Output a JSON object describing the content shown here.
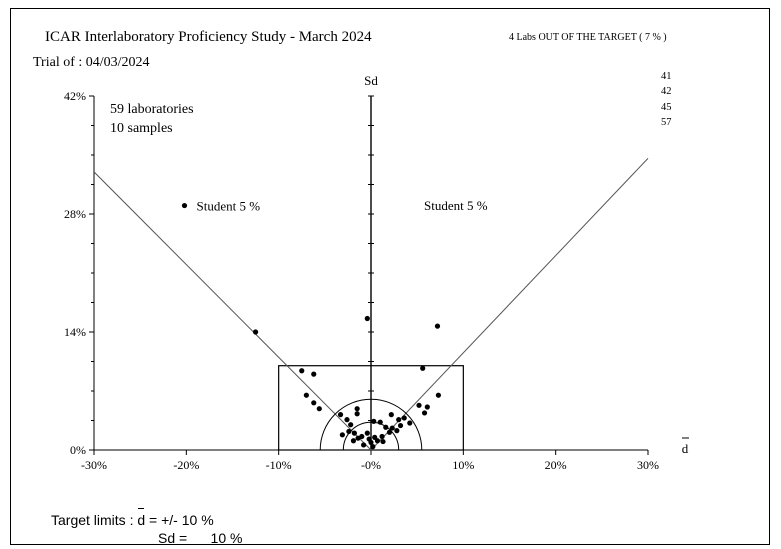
{
  "header": {
    "title": "ICAR Interlaboratory Proficiency Study - March  2024",
    "trial": "Trial of : 04/03/2024",
    "out_of_target": "4 Labs OUT OF THE TARGET ( 7 % )",
    "out_labs": [
      "41",
      "42",
      "45",
      "57"
    ]
  },
  "annotations": {
    "labs": "59 laboratories",
    "samples": "10 samples",
    "student_left": "Student 5 %",
    "student_right": "Student 5 %"
  },
  "footer": {
    "target_prefix": "Target limits : ",
    "d_symbol": "d",
    "target_d_value": " = +/- 10 %",
    "target_sd_text": "Sd =      10 %"
  },
  "chart_data": {
    "type": "scatter",
    "xlabel": "d",
    "ylabel": "Sd",
    "xlim": [
      -30,
      30
    ],
    "ylim": [
      0,
      42
    ],
    "x_ticks": [
      -30,
      -20,
      -10,
      0,
      10,
      20,
      30
    ],
    "x_tick_labels": [
      "-30%",
      "-20%",
      "-10%",
      "-0%",
      "10%",
      "20%",
      "30%"
    ],
    "y_ticks": [
      0,
      14,
      28,
      42
    ],
    "y_tick_labels": [
      "0%",
      "14%",
      "28%",
      "42%"
    ],
    "target_box": {
      "d_limit": 10,
      "sd_limit": 10
    },
    "student_lines": [
      {
        "from": [
          0,
          0
        ],
        "to": [
          -30,
          33
        ]
      },
      {
        "from": [
          0,
          0
        ],
        "to": [
          30,
          34.6
        ]
      }
    ],
    "circles_radius": [
      3,
      5.5
    ],
    "points": [
      {
        "x": -12.5,
        "y": 14
      },
      {
        "x": -0.4,
        "y": 15.6
      },
      {
        "x": 7.2,
        "y": 14.7
      },
      {
        "x": -7.5,
        "y": 9.4
      },
      {
        "x": -6.2,
        "y": 9.0
      },
      {
        "x": 5.6,
        "y": 9.7
      },
      {
        "x": -7,
        "y": 6.5
      },
      {
        "x": -6.2,
        "y": 5.6
      },
      {
        "x": -5.6,
        "y": 4.9
      },
      {
        "x": 7.3,
        "y": 6.5
      },
      {
        "x": 5.2,
        "y": 5.3
      },
      {
        "x": 6.1,
        "y": 5.1
      },
      {
        "x": 5.8,
        "y": 4.4
      },
      {
        "x": -1.5,
        "y": 4.9
      },
      {
        "x": -3.3,
        "y": 4.2
      },
      {
        "x": -2.6,
        "y": 3.6
      },
      {
        "x": -1.5,
        "y": 4.3
      },
      {
        "x": -2.2,
        "y": 3.0
      },
      {
        "x": 2.2,
        "y": 4.2
      },
      {
        "x": 3.0,
        "y": 3.6
      },
      {
        "x": 3.6,
        "y": 3.8
      },
      {
        "x": 4.2,
        "y": 3.2
      },
      {
        "x": 0.3,
        "y": 3.4
      },
      {
        "x": 1.0,
        "y": 3.3
      },
      {
        "x": 1.6,
        "y": 2.7
      },
      {
        "x": 2.3,
        "y": 2.6
      },
      {
        "x": 2.8,
        "y": 2.3
      },
      {
        "x": 3.2,
        "y": 2.9
      },
      {
        "x": 2.0,
        "y": 2.1
      },
      {
        "x": -0.4,
        "y": 2.0
      },
      {
        "x": -1.0,
        "y": 1.6
      },
      {
        "x": -1.8,
        "y": 2.0
      },
      {
        "x": -2.4,
        "y": 2.2
      },
      {
        "x": -1.4,
        "y": 1.4
      },
      {
        "x": -3.1,
        "y": 1.8
      },
      {
        "x": 0.4,
        "y": 1.5
      },
      {
        "x": 1.2,
        "y": 1.6
      },
      {
        "x": 0.7,
        "y": 1.1
      },
      {
        "x": 1.3,
        "y": 1.0
      },
      {
        "x": 0.0,
        "y": 0.9
      },
      {
        "x": -0.2,
        "y": 1.3
      },
      {
        "x": -1.9,
        "y": 1.1
      },
      {
        "x": -0.8,
        "y": 0.6
      },
      {
        "x": 0.2,
        "y": 0.4
      }
    ],
    "legend_point": {
      "x": -20.2,
      "y": 29.0
    }
  }
}
